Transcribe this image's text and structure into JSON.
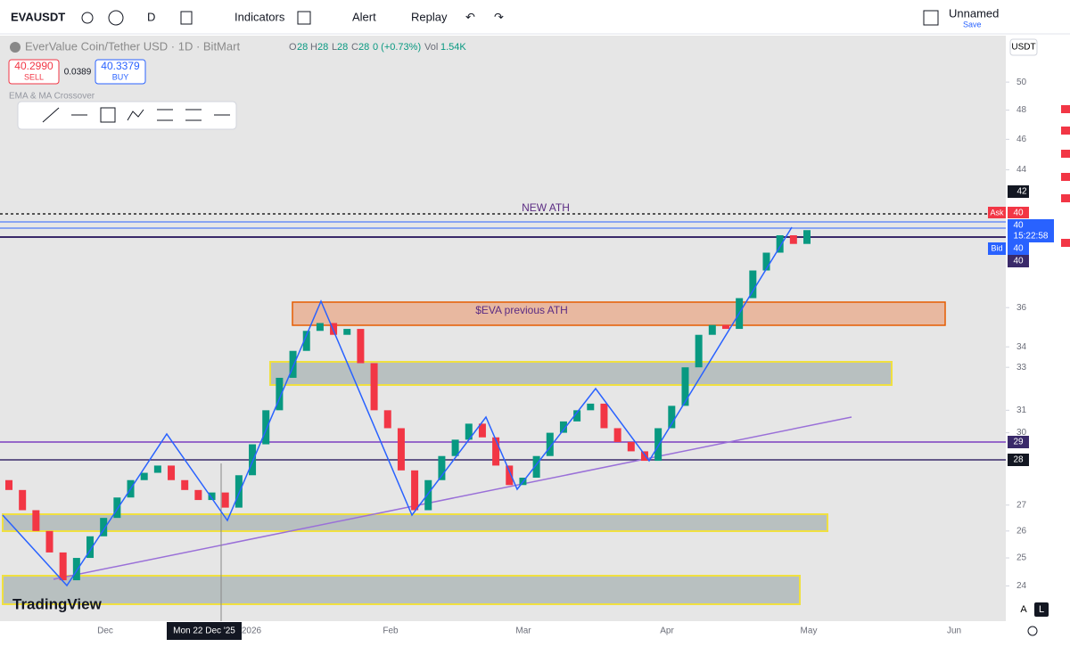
{
  "toolbar": {
    "symbol": "EVAUSDT",
    "interval": "D",
    "indicators": "Indicators",
    "alert": "Alert",
    "replay": "Replay",
    "layout_name": "Unnamed",
    "save": "Save"
  },
  "legend": {
    "title": "EverValue Coin/Tether USD · 1D · BitMart",
    "o_label": "O",
    "o": "28",
    "h_label": "H",
    "h": "28",
    "l_label": "L",
    "l": "28",
    "c_label": "C",
    "c": "28",
    "change": "0 (+0.73%)",
    "vol_label": "Vol",
    "vol": "1.54K",
    "sell_price": "40.2990",
    "sell": "SELL",
    "spread": "0.0389",
    "buy_price": "40.3379",
    "buy": "BUY",
    "indicator": "EMA & MA Crossover"
  },
  "currency": "USDT",
  "price_badges": {
    "current": "42",
    "ask_label": "Ask",
    "ask": "40",
    "last": "40",
    "countdown": "15:22:58",
    "bid_label": "Bid",
    "bid": "40",
    "level": "40",
    "line_29": "29",
    "line_28": "28"
  },
  "annotations": {
    "new_ath": "NEW ATH",
    "previous_ath": "$EVA previous ATH"
  },
  "time_axis": {
    "labels": [
      "Dec",
      "2026",
      "Feb",
      "Mar",
      "Apr",
      "May",
      "Jun"
    ],
    "crosshair": "Mon 22 Dec '25"
  },
  "logo": "TradingView",
  "scale_buttons": {
    "auto": "A",
    "log": "L"
  },
  "chart_data": {
    "type": "candlestick",
    "log": true,
    "ylim": [
      22.8,
      53.5
    ],
    "yticks": [
      50,
      48,
      46,
      44,
      36,
      34,
      33,
      31,
      30,
      27,
      26,
      25,
      24
    ],
    "up_color": "#089981",
    "down_color": "#f23645",
    "open": [
      28.0,
      27.6,
      26.8,
      26.0,
      25.2,
      24.2,
      25.0,
      25.8,
      26.5,
      27.3,
      28.0,
      28.3,
      28.6,
      28.0,
      27.6,
      27.2,
      27.5,
      26.9,
      28.2,
      29.5,
      31.0,
      32.5,
      33.8,
      34.8,
      35.2,
      34.6,
      34.9,
      33.2,
      31.0,
      30.2,
      28.4,
      26.8,
      28.0,
      29.0,
      29.7,
      30.4,
      29.8,
      28.6,
      27.8,
      28.1,
      29.0,
      30.0,
      30.5,
      31.0,
      31.3,
      30.2,
      29.6,
      29.2,
      28.8,
      30.2,
      31.2,
      33.0,
      34.6,
      35.1,
      34.9,
      36.5,
      38.0,
      39.0,
      40.0,
      39.5
    ],
    "close": [
      27.6,
      26.8,
      26.0,
      25.2,
      24.2,
      25.0,
      25.8,
      26.5,
      27.3,
      28.0,
      28.3,
      28.6,
      28.0,
      27.6,
      27.2,
      27.5,
      26.9,
      28.2,
      29.5,
      31.0,
      32.5,
      33.8,
      34.8,
      35.2,
      34.6,
      34.9,
      33.2,
      31.0,
      30.2,
      28.4,
      26.8,
      28.0,
      29.0,
      29.7,
      30.4,
      29.8,
      28.6,
      27.8,
      28.1,
      29.0,
      30.0,
      30.5,
      31.0,
      31.3,
      30.2,
      29.6,
      29.2,
      28.8,
      30.2,
      31.2,
      33.0,
      34.6,
      35.1,
      34.9,
      36.5,
      38.0,
      39.0,
      40.0,
      39.5,
      40.3
    ]
  }
}
